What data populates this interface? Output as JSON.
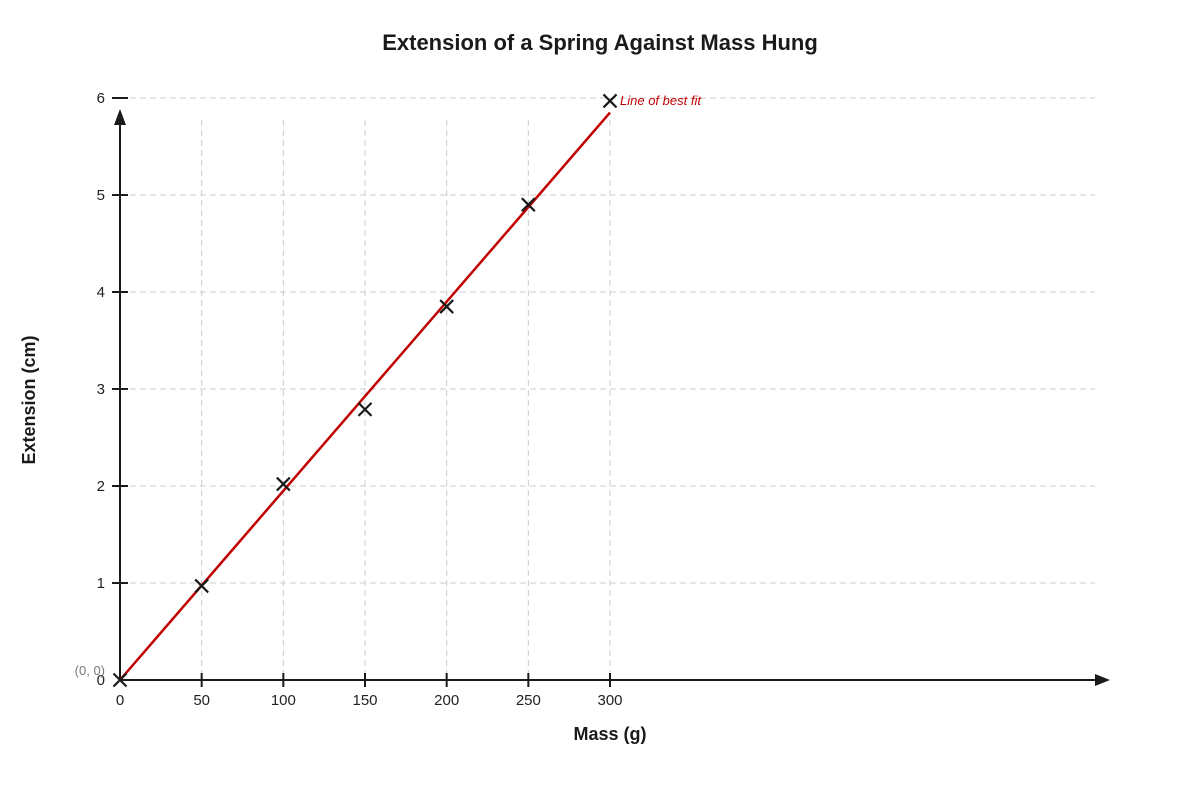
{
  "chart_data": {
    "type": "scatter",
    "title": "Extension of a Spring Against Mass Hung",
    "xlabel": "Mass (g)",
    "ylabel": "Extension (cm)",
    "xlim": [
      0,
      600
    ],
    "ylim": [
      0,
      6
    ],
    "x_ticks": [
      "0",
      "50",
      "100",
      "150",
      "200",
      "250",
      "300"
    ],
    "y_ticks": [
      "0",
      "1",
      "2",
      "3",
      "4",
      "5",
      "6"
    ],
    "grid": true,
    "series": [
      {
        "x": [
          0,
          50,
          100,
          150,
          200,
          250,
          300
        ],
        "y": [
          0,
          0.97,
          2.02,
          2.79,
          3.85,
          4.9,
          5.97
        ],
        "marker": "x",
        "color": "#1a1a1a"
      }
    ],
    "best_fit": {
      "label": "Line of best fit",
      "x": [
        0,
        300
      ],
      "y": [
        0,
        5.85
      ],
      "color": "#c00000"
    },
    "origin_label": "(0, 0)"
  }
}
